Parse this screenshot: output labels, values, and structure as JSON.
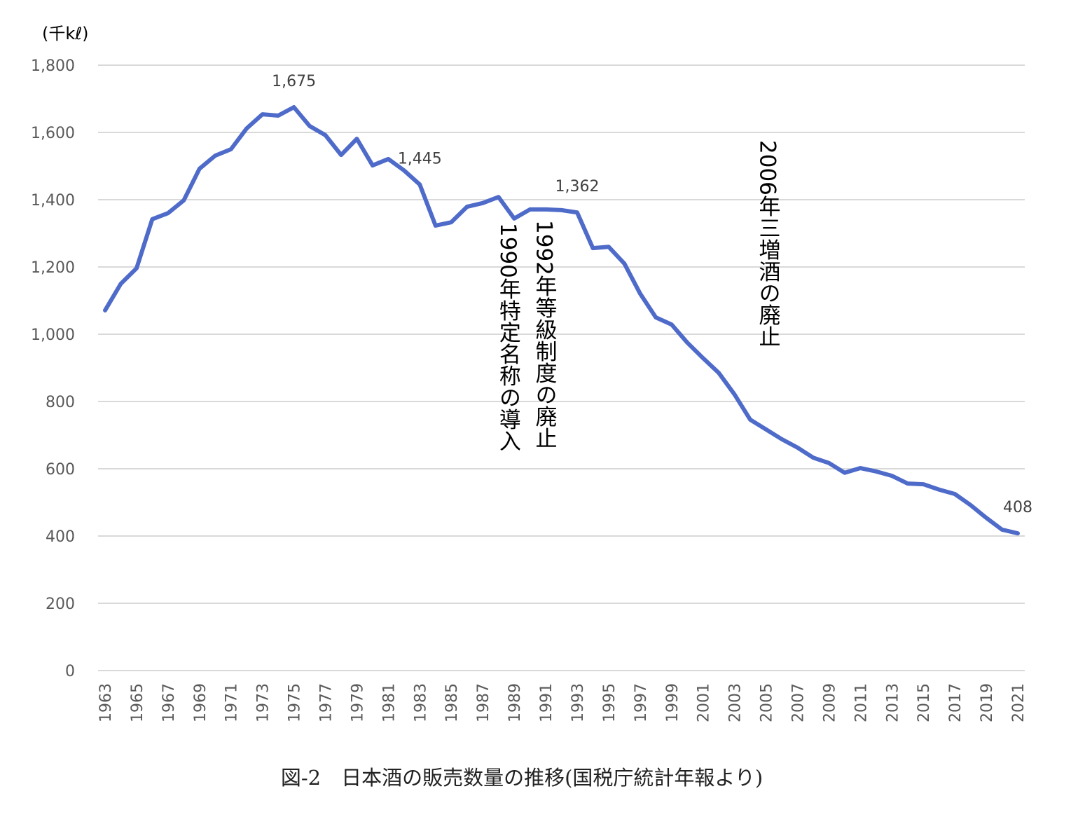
{
  "chart_data": {
    "type": "line",
    "title": "",
    "caption": "図-2　日本酒の販売数量の推移(国税庁統計年報より)",
    "ylabel": "(千kℓ)",
    "xlabel": "",
    "ylim": [
      0,
      1800
    ],
    "yticks": [
      0,
      200,
      400,
      600,
      800,
      1000,
      1200,
      1400,
      1600,
      1800
    ],
    "ytick_labels": [
      "0",
      "200",
      "400",
      "600",
      "800",
      "1,000",
      "1,200",
      "1,400",
      "1,600",
      "1,800"
    ],
    "xlim": [
      1963,
      2021
    ],
    "xtick_labels": [
      "1963",
      "1965",
      "1967",
      "1969",
      "1971",
      "1973",
      "1975",
      "1977",
      "1979",
      "1981",
      "1983",
      "1985",
      "1987",
      "1989",
      "1991",
      "1993",
      "1995",
      "1997",
      "1999",
      "2001",
      "2003",
      "2005",
      "2007",
      "2009",
      "2011",
      "2013",
      "2015",
      "2017",
      "2019",
      "2021"
    ],
    "grid": true,
    "legend": "none",
    "series": [
      {
        "name": "日本酒販売数量",
        "color": "#4F6BC9",
        "x": [
          1963,
          1964,
          1965,
          1966,
          1967,
          1968,
          1969,
          1970,
          1971,
          1972,
          1973,
          1974,
          1975,
          1976,
          1977,
          1978,
          1979,
          1980,
          1981,
          1982,
          1983,
          1984,
          1985,
          1986,
          1987,
          1988,
          1989,
          1990,
          1991,
          1992,
          1993,
          1994,
          1995,
          1996,
          1997,
          1998,
          1999,
          2000,
          2001,
          2002,
          2003,
          2004,
          2005,
          2006,
          2007,
          2008,
          2009,
          2010,
          2011,
          2012,
          2013,
          2014,
          2015,
          2016,
          2017,
          2018,
          2019,
          2020,
          2021
        ],
        "values": [
          1071,
          1150,
          1196,
          1342,
          1360,
          1398,
          1492,
          1531,
          1550,
          1612,
          1654,
          1650,
          1675,
          1619,
          1592,
          1533,
          1581,
          1502,
          1521,
          1487,
          1445,
          1323,
          1333,
          1379,
          1390,
          1408,
          1344,
          1371,
          1371,
          1369,
          1362,
          1256,
          1260,
          1210,
          1121,
          1050,
          1029,
          975,
          929,
          885,
          821,
          746,
          717,
          688,
          663,
          633,
          617,
          588,
          602,
          592,
          579,
          556,
          554,
          538,
          525,
          492,
          454,
          419,
          408
        ]
      }
    ],
    "data_labels": [
      {
        "x": 1975,
        "text": "1,675"
      },
      {
        "x": 1983,
        "text": "1,445"
      },
      {
        "x": 1993,
        "text": "1,362"
      },
      {
        "x": 2021,
        "text": "408"
      }
    ],
    "annotations": [
      {
        "x": 1988.5,
        "text": "1990年特定名称の導入"
      },
      {
        "x": 1990.8,
        "text": "1992年等級制度の廃止"
      },
      {
        "x": 2005,
        "text": "2006年三増酒の廃止"
      }
    ]
  }
}
